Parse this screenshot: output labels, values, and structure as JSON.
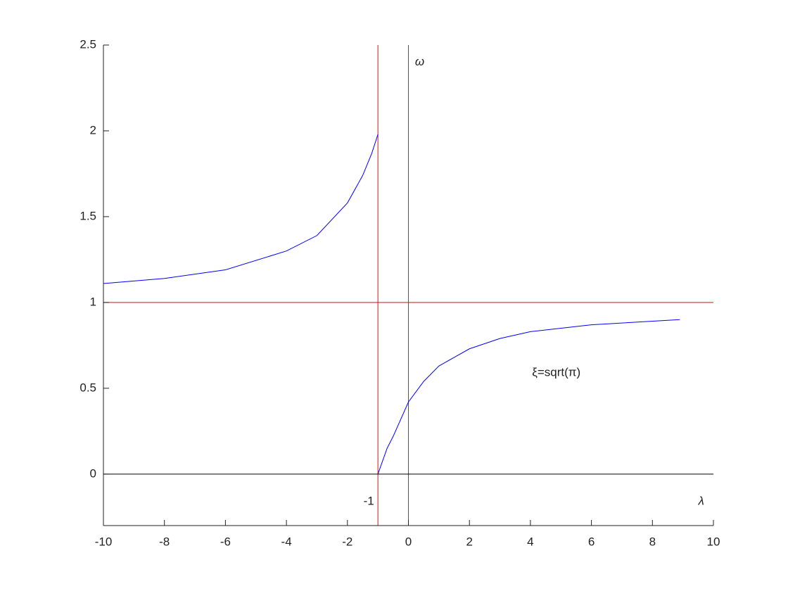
{
  "chart_data": {
    "type": "line",
    "xlim": [
      -10,
      10
    ],
    "xticks": [
      -10,
      -8,
      -6,
      -4,
      -2,
      0,
      2,
      4,
      6,
      8,
      10
    ],
    "ylim": [
      -0.3,
      2.5
    ],
    "yticks": [
      0,
      0.5,
      1,
      1.5,
      2,
      2.5
    ],
    "series": [
      {
        "color": "#0000ff",
        "x": [
          -10,
          -8,
          -6,
          -4,
          -3,
          -2,
          -1.5,
          -1.2,
          -1
        ],
        "values": [
          1.11,
          1.14,
          1.19,
          1.3,
          1.39,
          1.58,
          1.74,
          1.87,
          1.98
        ]
      },
      {
        "color": "#0000ff",
        "x": [
          -1,
          -0.7,
          -0.5,
          0,
          0.5,
          1,
          2,
          3,
          4,
          6,
          8.9
        ],
        "values": [
          0,
          0.15,
          0.22,
          0.42,
          0.54,
          0.63,
          0.73,
          0.79,
          0.83,
          0.87,
          0.9
        ]
      }
    ],
    "reference_lines": [
      {
        "axis": "x",
        "value": -1,
        "color": "#ff0000"
      },
      {
        "axis": "y",
        "value": 1,
        "color": "#ff0000"
      },
      {
        "axis": "x",
        "value": 0,
        "color": "#555555"
      },
      {
        "axis": "y",
        "value": 0,
        "color": "#000000"
      }
    ],
    "annotations": [
      "ω",
      "λ",
      "-1",
      "ξ=sqrt(π)"
    ]
  }
}
